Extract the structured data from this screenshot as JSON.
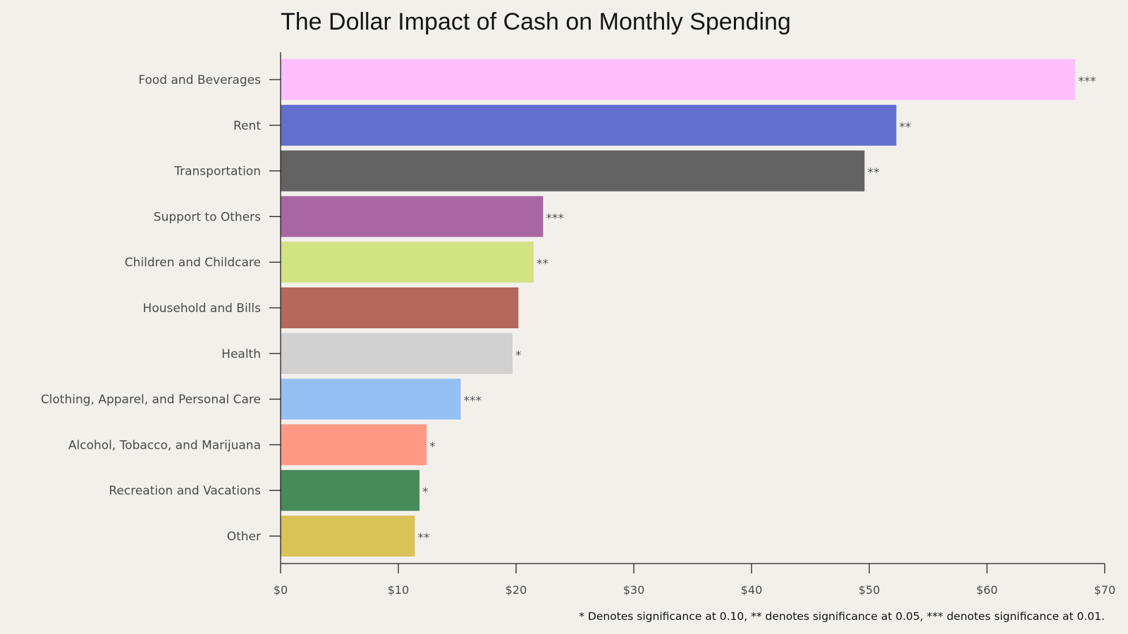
{
  "chart_data": {
    "type": "bar",
    "orientation": "horizontal",
    "title": "The Dollar Impact of Cash on Monthly Spending",
    "xlabel": "",
    "ylabel": "",
    "xlim": [
      0,
      70
    ],
    "grid": false,
    "legend": false,
    "categories": [
      "Food and Beverages",
      "Rent",
      "Transportation",
      "Support to Others",
      "Children and Childcare",
      "Household and Bills",
      "Health",
      "Clothing, Apparel, and Personal Care",
      "Alcohol, Tobacco, and Marijuana",
      "Recreation and Vacations",
      "Other"
    ],
    "values": [
      67.5,
      52.3,
      49.6,
      22.3,
      21.5,
      20.2,
      19.7,
      15.3,
      12.4,
      11.8,
      11.4
    ],
    "significance": [
      "***",
      "**",
      "**",
      "***",
      "**",
      "",
      "*",
      "***",
      "*",
      "*",
      "**"
    ],
    "colors": [
      "#ffbffc",
      "#646ecf",
      "#636363",
      "#a966a3",
      "#d1e383",
      "#b5685c",
      "#d1d1d1",
      "#95c0f4",
      "#ff9885",
      "#488b5b",
      "#d9c357"
    ],
    "xticks": [
      0,
      10,
      20,
      30,
      40,
      50,
      60,
      70
    ],
    "xtick_labels": [
      "$0",
      "$10",
      "$20",
      "$30",
      "$40",
      "$50",
      "$60",
      "$70"
    ],
    "footnote": "* Denotes significance at 0.10, ** denotes significance at 0.05, *** denotes significance at 0.01."
  }
}
